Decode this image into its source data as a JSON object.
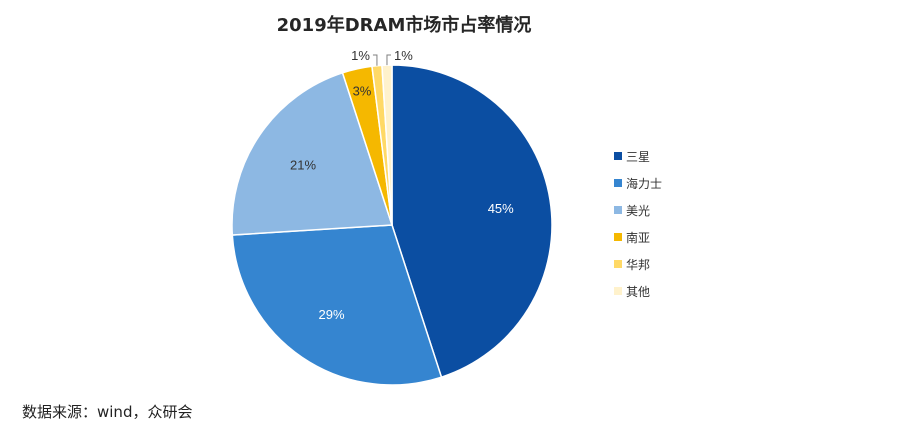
{
  "chart_data": {
    "type": "pie",
    "title": "2019年DRAM市场市占率情况",
    "slices": [
      {
        "name": "三星",
        "value": 45,
        "label": "45%",
        "color": "#0B4EA2"
      },
      {
        "name": "海力士",
        "value": 29,
        "label": "29%",
        "color": "#3585D0"
      },
      {
        "name": "美光",
        "value": 21,
        "label": "21%",
        "color": "#8DB8E3"
      },
      {
        "name": "南亚",
        "value": 3,
        "label": "3%",
        "color": "#F5B800"
      },
      {
        "name": "华邦",
        "value": 1,
        "label": "1%",
        "color": "#FFD966"
      },
      {
        "name": "其他",
        "value": 1,
        "label": "1%",
        "color": "#FFF2CC"
      }
    ],
    "legend_position": "right"
  },
  "source_text": "数据来源：wind，众研会"
}
